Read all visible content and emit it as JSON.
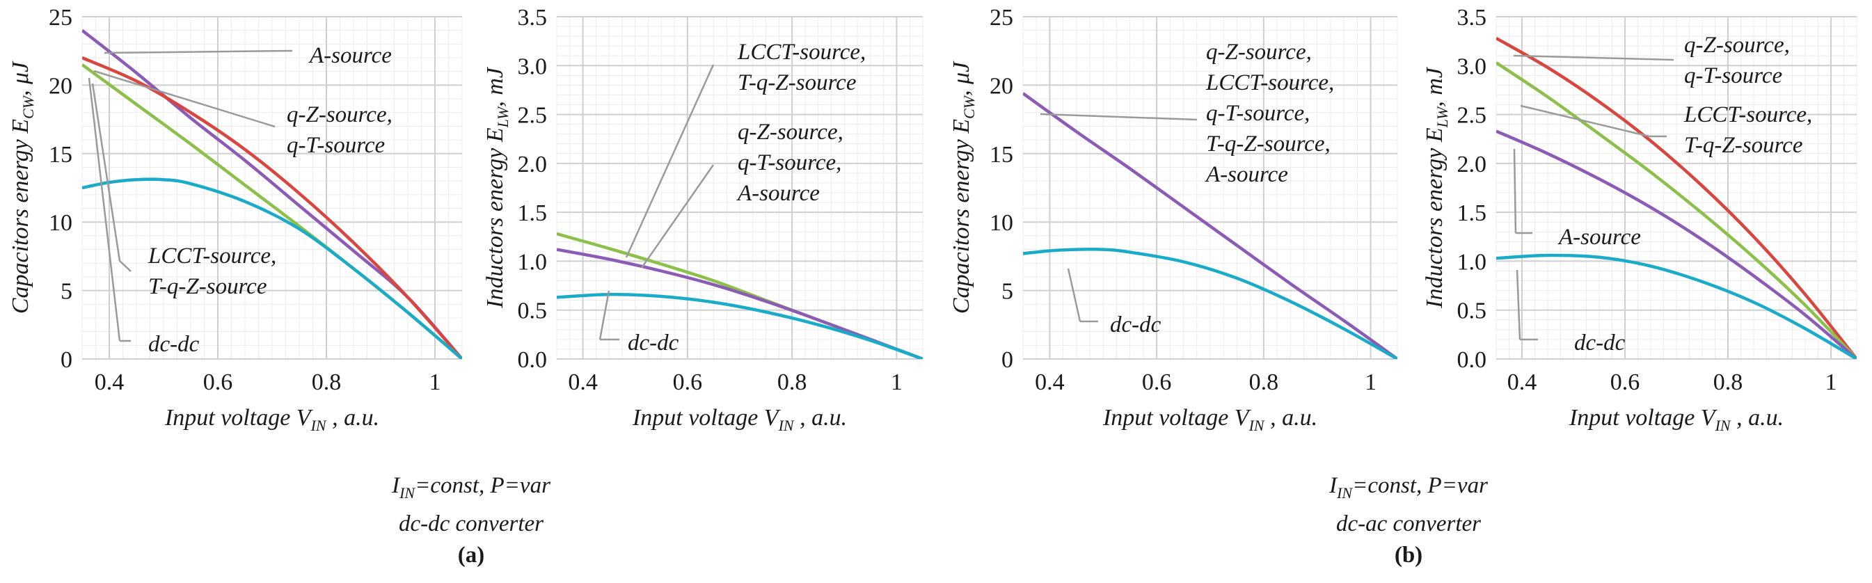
{
  "figure": {
    "captions": [
      {
        "line1": "I",
        "line1_sub": "IN",
        "line1_rest": "=const, P=var",
        "line2": "dc-dc converter",
        "label": "(a)"
      },
      {
        "line1": "I",
        "line1_sub": "IN",
        "line1_rest": "=const, P=var",
        "line2": "dc-ac converter",
        "label": "(b)"
      }
    ]
  },
  "chart_data": [
    {
      "type": "line",
      "id": "a-capacitors",
      "ylabel": {
        "main": "Capacitors energy E",
        "sub": "CW",
        "unit": ", μJ"
      },
      "xlabel": {
        "main": "Input voltage V",
        "sub": "IN",
        "unit": " , a.u."
      },
      "xlim": [
        0.35,
        1.05
      ],
      "ylim": [
        0,
        25
      ],
      "xticks": [
        "0.4",
        "0.6",
        "0.8",
        "1"
      ],
      "xtick_values": [
        0.4,
        0.6,
        0.8,
        1.0
      ],
      "yticks": [
        "0",
        "5",
        "10",
        "15",
        "20",
        "25"
      ],
      "ytick_values": [
        0,
        5,
        10,
        15,
        20,
        25
      ],
      "series": [
        {
          "name": "A-source",
          "color": "#8b5bb5",
          "x": [
            0.35,
            0.45,
            0.55,
            0.65,
            0.75,
            0.85,
            0.95,
            1.05
          ],
          "y": [
            24.0,
            20.9,
            17.6,
            14.5,
            11.2,
            7.9,
            4.5,
            0.0
          ]
        },
        {
          "name": "q-Z-source, q-T-source",
          "color": "#d9453f",
          "x": [
            0.35,
            0.45,
            0.55,
            0.65,
            0.75,
            0.85,
            0.95,
            1.05
          ],
          "y": [
            22.0,
            20.3,
            18.0,
            15.3,
            12.1,
            8.5,
            4.5,
            0.0
          ]
        },
        {
          "name": "LCCT-source, T-q-Z-source",
          "color": "#8cc04a",
          "x": [
            0.35,
            0.45,
            0.55,
            0.65,
            0.75,
            0.85,
            0.95,
            1.05
          ],
          "y": [
            21.5,
            18.6,
            15.7,
            12.7,
            9.7,
            6.6,
            3.4,
            0.0
          ]
        },
        {
          "name": "dc-dc",
          "color": "#1aabc9",
          "x": [
            0.35,
            0.4,
            0.45,
            0.5,
            0.55,
            0.65,
            0.75,
            0.85,
            0.95,
            1.05
          ],
          "y": [
            12.5,
            12.9,
            13.1,
            13.1,
            12.8,
            11.5,
            9.5,
            6.6,
            3.4,
            0.0
          ]
        }
      ],
      "annotations": [
        {
          "text": "A-source",
          "series": "A-source"
        },
        {
          "text": "q-Z-source,",
          "text2": "q-T-source",
          "series": "q-Z-source, q-T-source"
        },
        {
          "text": "LCCT-source,",
          "text2": "T-q-Z-source",
          "series": "LCCT-source, T-q-Z-source"
        },
        {
          "text": "dc-dc",
          "series": "dc-dc"
        }
      ]
    },
    {
      "type": "line",
      "id": "a-inductors",
      "ylabel": {
        "main": "Inductors energy E",
        "sub": "LW",
        "unit": ", mJ"
      },
      "xlabel": {
        "main": "Input voltage V",
        "sub": "IN",
        "unit": " , a.u."
      },
      "xlim": [
        0.35,
        1.05
      ],
      "ylim": [
        0,
        3.5
      ],
      "xticks": [
        "0.4",
        "0.6",
        "0.8",
        "1"
      ],
      "xtick_values": [
        0.4,
        0.6,
        0.8,
        1.0
      ],
      "yticks": [
        "0.0",
        "0.5",
        "1.0",
        "1.5",
        "2.0",
        "2.5",
        "3.0",
        "3.5"
      ],
      "ytick_values": [
        0,
        0.5,
        1.0,
        1.5,
        2.0,
        2.5,
        3.0,
        3.5
      ],
      "series": [
        {
          "name": "LCCT-source, T-q-Z-source",
          "color": "#8cc04a",
          "x": [
            0.35,
            0.45,
            0.55,
            0.65,
            0.75,
            0.85,
            0.95,
            1.05
          ],
          "y": [
            1.28,
            1.13,
            0.97,
            0.8,
            0.6,
            0.4,
            0.2,
            0.0
          ]
        },
        {
          "name": "q-Z-source, q-T-source, A-source",
          "color": "#8b5bb5",
          "x": [
            0.35,
            0.45,
            0.55,
            0.65,
            0.75,
            0.85,
            0.95,
            1.05
          ],
          "y": [
            1.12,
            1.02,
            0.9,
            0.76,
            0.59,
            0.4,
            0.2,
            0.0
          ]
        },
        {
          "name": "dc-dc",
          "color": "#1aabc9",
          "x": [
            0.35,
            0.45,
            0.55,
            0.65,
            0.75,
            0.85,
            0.95,
            1.05
          ],
          "y": [
            0.63,
            0.66,
            0.64,
            0.58,
            0.48,
            0.35,
            0.19,
            0.0
          ]
        }
      ],
      "annotations": [
        {
          "text": "LCCT-source,",
          "text2": "T-q-Z-source",
          "series": "LCCT-source, T-q-Z-source"
        },
        {
          "text": "q-Z-source,",
          "text2": "q-T-source,",
          "text3": "A-source",
          "series": "q-Z-source, q-T-source, A-source"
        },
        {
          "text": "dc-dc",
          "series": "dc-dc"
        }
      ]
    },
    {
      "type": "line",
      "id": "b-capacitors",
      "ylabel": {
        "main": "Capacitors energy E",
        "sub": "CW",
        "unit": ", μJ"
      },
      "xlabel": {
        "main": "Input voltage V",
        "sub": "IN",
        "unit": " , a.u."
      },
      "xlim": [
        0.35,
        1.05
      ],
      "ylim": [
        0,
        25
      ],
      "xticks": [
        "0.4",
        "0.6",
        "0.8",
        "1"
      ],
      "xtick_values": [
        0.4,
        0.6,
        0.8,
        1.0
      ],
      "yticks": [
        "0",
        "5",
        "10",
        "15",
        "20",
        "25"
      ],
      "ytick_values": [
        0,
        5,
        10,
        15,
        20,
        25
      ],
      "series": [
        {
          "name": "q-Z-source, LCCT-source, q-T-source, T-q-Z-source, A-source",
          "color": "#8b5bb5",
          "x": [
            0.35,
            0.45,
            0.55,
            0.65,
            0.75,
            0.85,
            0.95,
            1.05
          ],
          "y": [
            19.4,
            16.6,
            13.9,
            11.1,
            8.3,
            5.5,
            2.8,
            0.0
          ]
        },
        {
          "name": "dc-dc",
          "color": "#1aabc9",
          "x": [
            0.35,
            0.4,
            0.45,
            0.5,
            0.55,
            0.65,
            0.75,
            0.85,
            0.95,
            1.05
          ],
          "y": [
            7.7,
            7.9,
            8.0,
            8.0,
            7.8,
            7.1,
            5.9,
            4.2,
            2.2,
            0.0
          ]
        }
      ],
      "annotations": [
        {
          "text": "q-Z-source,",
          "text2": "LCCT-source,",
          "text3": "q-T-source,",
          "text4": "T-q-Z-source,",
          "text5": "A-source",
          "series": "q-Z-source, LCCT-source, q-T-source, T-q-Z-source, A-source"
        },
        {
          "text": "dc-dc",
          "series": "dc-dc"
        }
      ]
    },
    {
      "type": "line",
      "id": "b-inductors",
      "ylabel": {
        "main": "Inductors energy E",
        "sub": "LW",
        "unit": ", mJ"
      },
      "xlabel": {
        "main": "Input voltage V",
        "sub": "IN",
        "unit": " , a.u."
      },
      "xlim": [
        0.35,
        1.05
      ],
      "ylim": [
        0,
        3.5
      ],
      "xticks": [
        "0.4",
        "0.6",
        "0.8",
        "1"
      ],
      "xtick_values": [
        0.4,
        0.6,
        0.8,
        1.0
      ],
      "yticks": [
        "0.0",
        "0.5",
        "1.0",
        "1.5",
        "2.0",
        "2.5",
        "3.0",
        "3.5"
      ],
      "ytick_values": [
        0,
        0.5,
        1.0,
        1.5,
        2.0,
        2.5,
        3.0,
        3.5
      ],
      "series": [
        {
          "name": "q-Z-source, q-T-source",
          "color": "#d9453f",
          "x": [
            0.35,
            0.45,
            0.55,
            0.65,
            0.75,
            0.85,
            0.95,
            1.05
          ],
          "y": [
            3.28,
            2.98,
            2.63,
            2.23,
            1.77,
            1.25,
            0.66,
            0.0
          ]
        },
        {
          "name": "LCCT-source, T-q-Z-source",
          "color": "#8cc04a",
          "x": [
            0.35,
            0.45,
            0.55,
            0.65,
            0.75,
            0.85,
            0.95,
            1.05
          ],
          "y": [
            3.03,
            2.68,
            2.3,
            1.91,
            1.49,
            1.04,
            0.55,
            0.0
          ]
        },
        {
          "name": "A-source",
          "color": "#8b5bb5",
          "x": [
            0.35,
            0.45,
            0.55,
            0.65,
            0.75,
            0.85,
            0.95,
            1.05
          ],
          "y": [
            2.33,
            2.1,
            1.84,
            1.55,
            1.22,
            0.85,
            0.45,
            0.0
          ]
        },
        {
          "name": "dc-dc",
          "color": "#1aabc9",
          "x": [
            0.35,
            0.45,
            0.55,
            0.65,
            0.75,
            0.85,
            0.95,
            1.05
          ],
          "y": [
            1.03,
            1.06,
            1.04,
            0.95,
            0.79,
            0.58,
            0.31,
            0.0
          ]
        }
      ],
      "annotations": [
        {
          "text": "q-Z-source,",
          "text2": "q-T-source",
          "series": "q-Z-source, q-T-source"
        },
        {
          "text": "LCCT-source,",
          "text2": "T-q-Z-source",
          "series": "LCCT-source, T-q-Z-source"
        },
        {
          "text": "A-source",
          "series": "A-source"
        },
        {
          "text": "dc-dc",
          "series": "dc-dc"
        }
      ]
    }
  ]
}
